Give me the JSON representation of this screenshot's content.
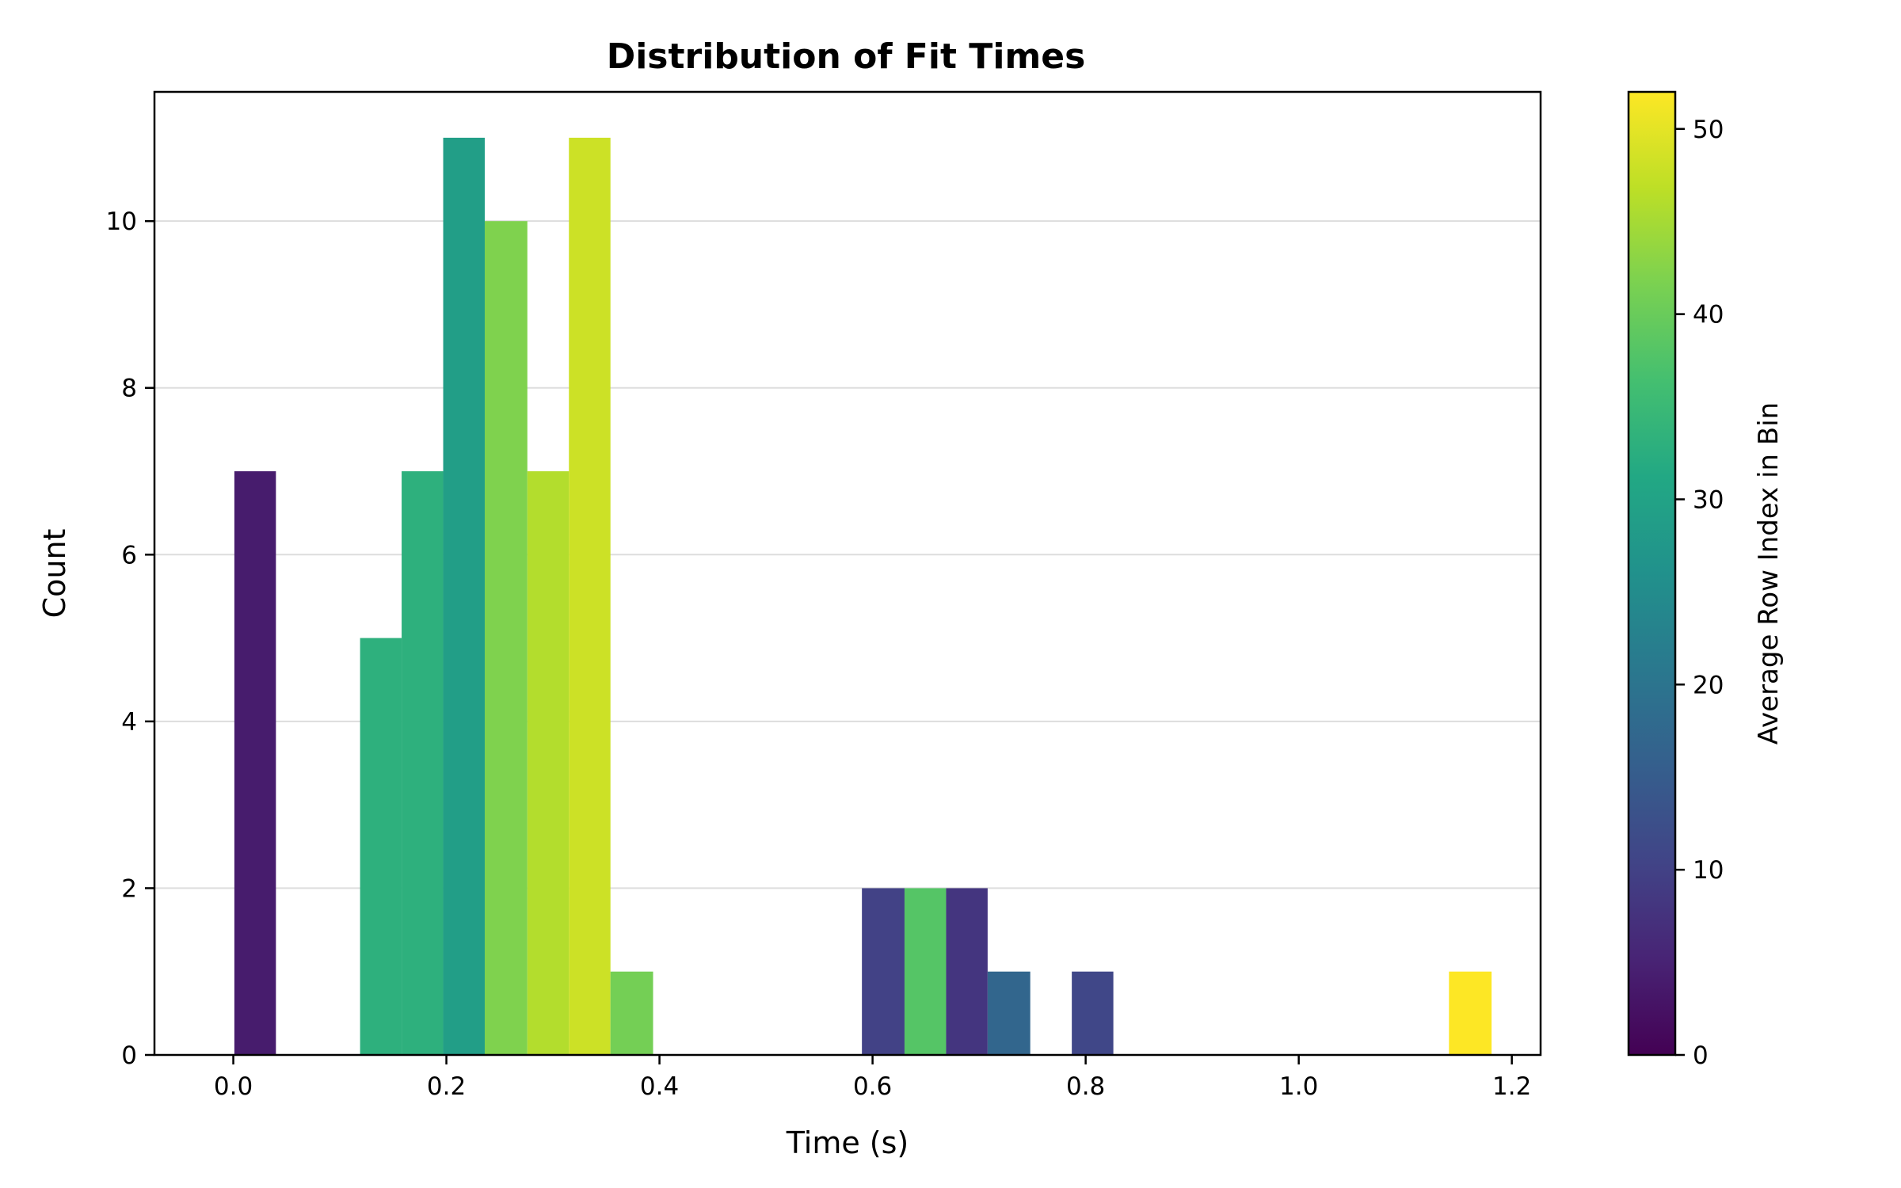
{
  "chart_data": {
    "type": "bar",
    "title": "Distribution of Fit Times",
    "xlabel": "Time (s)",
    "ylabel": "Count",
    "xlim": [
      -0.074,
      1.227
    ],
    "ylim": [
      0,
      11.55
    ],
    "xticks": [
      "0.0",
      "0.2",
      "0.4",
      "0.6",
      "0.8",
      "1.0",
      "1.2"
    ],
    "xtick_values": [
      0.0,
      0.2,
      0.4,
      0.6,
      0.8,
      1.0,
      1.2
    ],
    "yticks": [
      "0",
      "2",
      "4",
      "6",
      "8",
      "10"
    ],
    "ytick_values": [
      0,
      2,
      4,
      6,
      8,
      10
    ],
    "grid": "horizontal",
    "colorbar": {
      "label": "Average Row Index in Bin",
      "range": [
        0,
        52
      ],
      "ticks": [
        "0",
        "10",
        "20",
        "30",
        "40",
        "50"
      ],
      "tick_values": [
        0,
        10,
        20,
        30,
        40,
        50
      ],
      "colormap": "viridis"
    },
    "bars": [
      {
        "x0": 0.001,
        "x1": 0.04,
        "count": 7,
        "avg_index": 4
      },
      {
        "x0": 0.119,
        "x1": 0.158,
        "count": 5,
        "avg_index": 33
      },
      {
        "x0": 0.158,
        "x1": 0.197,
        "count": 7,
        "avg_index": 33
      },
      {
        "x0": 0.197,
        "x1": 0.236,
        "count": 11,
        "avg_index": 29
      },
      {
        "x0": 0.236,
        "x1": 0.276,
        "count": 10,
        "avg_index": 42
      },
      {
        "x0": 0.276,
        "x1": 0.315,
        "count": 7,
        "avg_index": 46
      },
      {
        "x0": 0.315,
        "x1": 0.354,
        "count": 11,
        "avg_index": 48
      },
      {
        "x0": 0.354,
        "x1": 0.394,
        "count": 1,
        "avg_index": 41
      },
      {
        "x0": 0.59,
        "x1": 0.63,
        "count": 2,
        "avg_index": 10
      },
      {
        "x0": 0.63,
        "x1": 0.669,
        "count": 2,
        "avg_index": 38
      },
      {
        "x0": 0.669,
        "x1": 0.708,
        "count": 2,
        "avg_index": 8
      },
      {
        "x0": 0.708,
        "x1": 0.748,
        "count": 1,
        "avg_index": 17
      },
      {
        "x0": 0.787,
        "x1": 0.826,
        "count": 1,
        "avg_index": 11
      },
      {
        "x0": 1.141,
        "x1": 1.181,
        "count": 1,
        "avg_index": 52
      }
    ]
  }
}
